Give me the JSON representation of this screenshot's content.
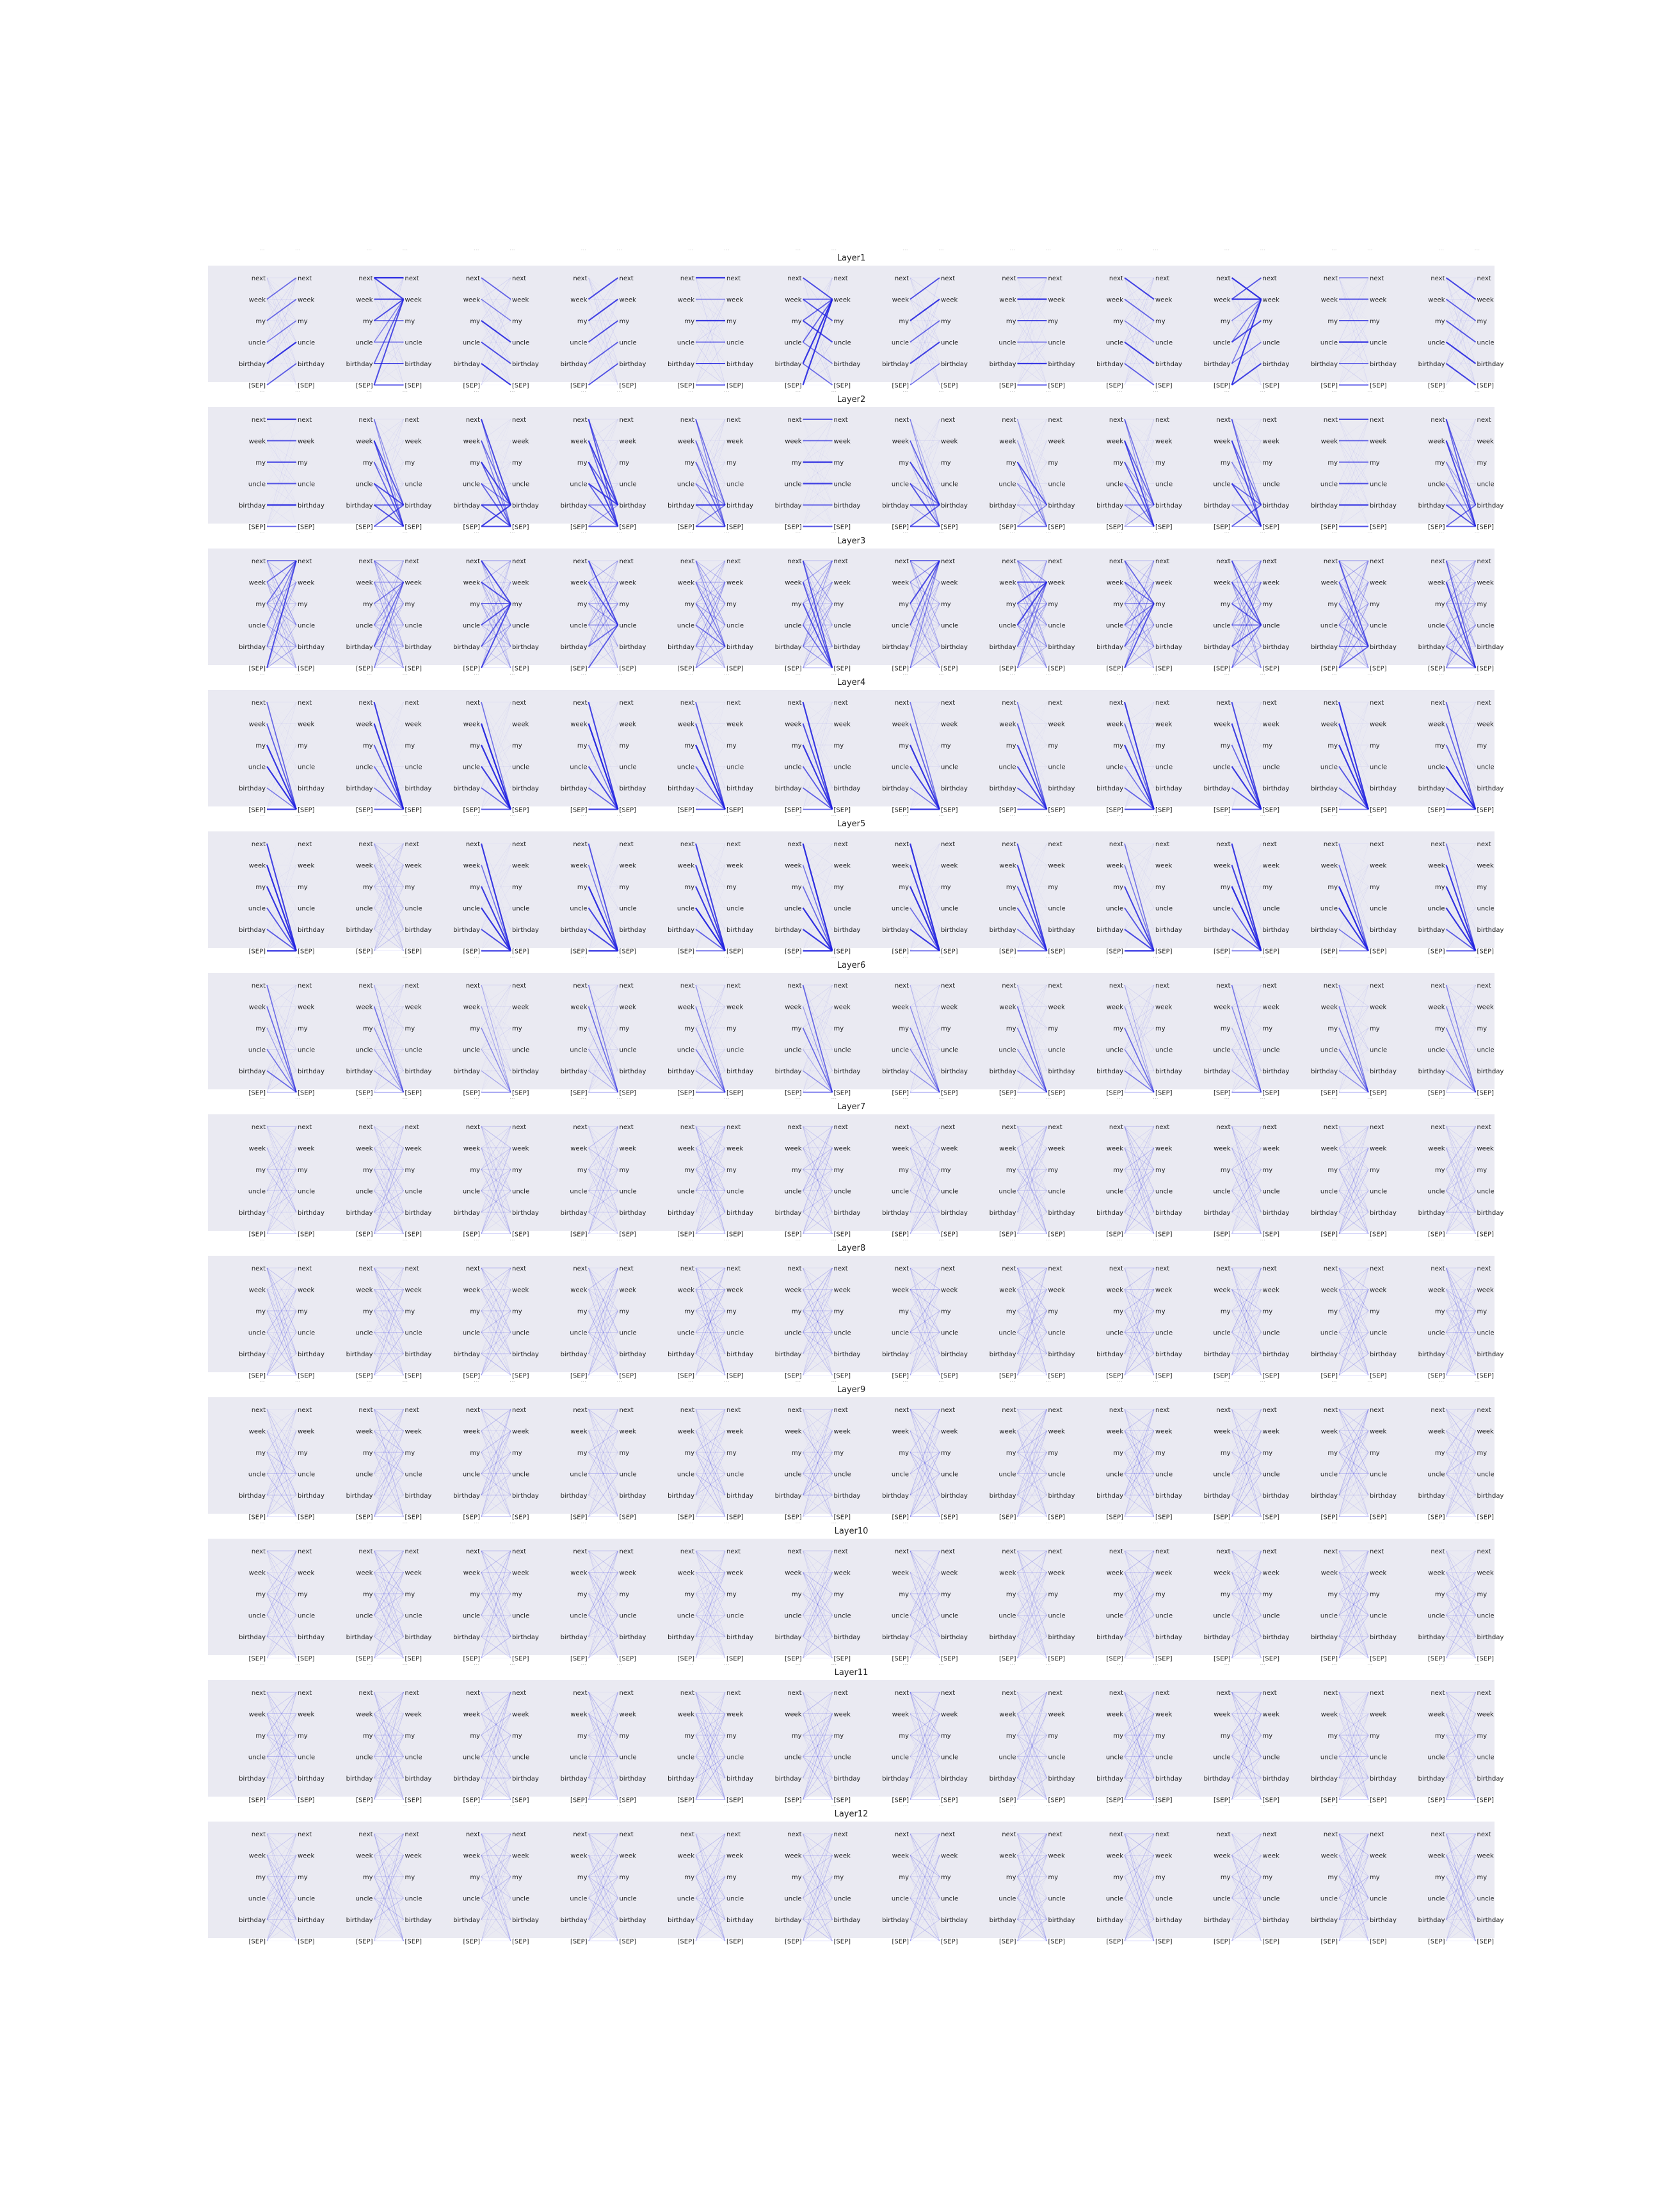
{
  "layers": [
    "Layer1",
    "Layer2",
    "Layer3",
    "Layer4",
    "Layer5",
    "Layer6",
    "Layer7",
    "Layer8",
    "Layer9",
    "Layer10",
    "Layer11",
    "Layer12"
  ],
  "tokens": [
    "next",
    "week",
    "my",
    "uncle",
    "birthday",
    "[SEP]"
  ],
  "head_count": 12,
  "ellipsis": "...",
  "colors": {
    "panel_bg": "#eaeaf2",
    "line": "#1f1fe0",
    "text": "#222222"
  },
  "attention_pattern_by_layer": [
    "local/mixed",
    "to-birthday/SEP",
    "dense",
    "to-SEP",
    "to-SEP",
    "to-SEP-diffuse",
    "diffuse",
    "diffuse",
    "diffuse",
    "diffuse",
    "diffuse",
    "diffuse"
  ]
}
